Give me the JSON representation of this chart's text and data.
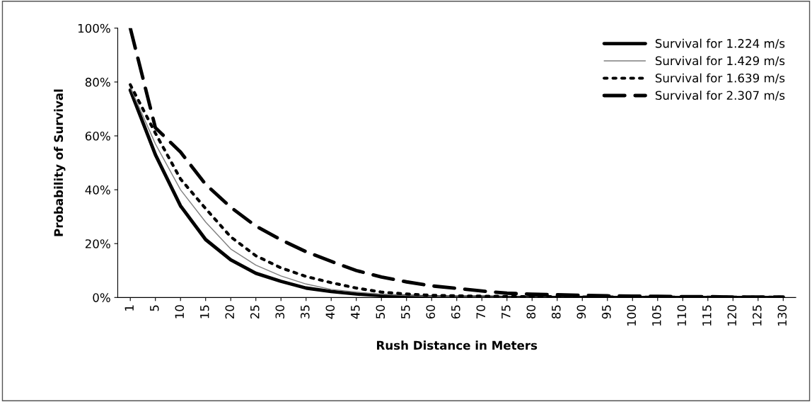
{
  "chart_data": {
    "type": "line",
    "xlabel": "Rush Distance in Meters",
    "ylabel": "Probability of Survival",
    "categories": [
      "1",
      "5",
      "10",
      "15",
      "20",
      "25",
      "30",
      "35",
      "40",
      "45",
      "50",
      "55",
      "60",
      "65",
      "70",
      "75",
      "80",
      "85",
      "90",
      "95",
      "100",
      "105",
      "110",
      "115",
      "120",
      "125",
      "130"
    ],
    "series": [
      {
        "name": "Survival for 1.224 m/s",
        "color": "#000000",
        "line_style": "solid",
        "values": [
          77,
          53,
          34,
          21.5,
          14,
          9,
          6,
          3.5,
          2.2,
          1.3,
          0.7,
          0.4,
          0.2,
          0.1,
          0.1,
          0,
          0,
          0,
          0,
          0,
          0,
          0,
          0,
          0,
          0,
          0,
          0
        ]
      },
      {
        "name": "Survival for 1.429 m/s",
        "color": "#7f7f7f",
        "line_style": "solid",
        "values": [
          78,
          57,
          40,
          28,
          18,
          12,
          8,
          5,
          3,
          2,
          1.2,
          0.7,
          0.4,
          0.3,
          0.2,
          0.1,
          0.1,
          0,
          0,
          0,
          0,
          0,
          0,
          0,
          0,
          0,
          0
        ]
      },
      {
        "name": "Survival for 1.639 m/s",
        "color": "#000000",
        "line_style": "dotted",
        "values": [
          79,
          61,
          44,
          33,
          22.5,
          15.5,
          11,
          7.8,
          5.5,
          3.5,
          2,
          1.3,
          0.8,
          0.6,
          0.5,
          0.4,
          0.3,
          0.3,
          0.2,
          0.2,
          0.2,
          0.1,
          0.1,
          0.1,
          0.1,
          0.1,
          0.1
        ]
      },
      {
        "name": "Survival for 2.307 m/s",
        "color": "#000000",
        "line_style": "dashed",
        "values": [
          100,
          63,
          54,
          42,
          33.5,
          26.5,
          21.4,
          17,
          13.4,
          10,
          7.6,
          5.8,
          4.3,
          3.4,
          2.4,
          1.6,
          1.2,
          1,
          0.8,
          0.6,
          0.5,
          0.4,
          0.3,
          0.3,
          0.2,
          0.2,
          0.2
        ]
      }
    ],
    "ylim": [
      0,
      100
    ],
    "yticks": [
      {
        "value": 0,
        "label": "0%"
      },
      {
        "value": 20,
        "label": "20%"
      },
      {
        "value": 40,
        "label": "40%"
      },
      {
        "value": 60,
        "label": "60%"
      },
      {
        "value": 80,
        "label": "80%"
      },
      {
        "value": 100,
        "label": "100%"
      }
    ],
    "grid": false,
    "legend": "top right"
  }
}
